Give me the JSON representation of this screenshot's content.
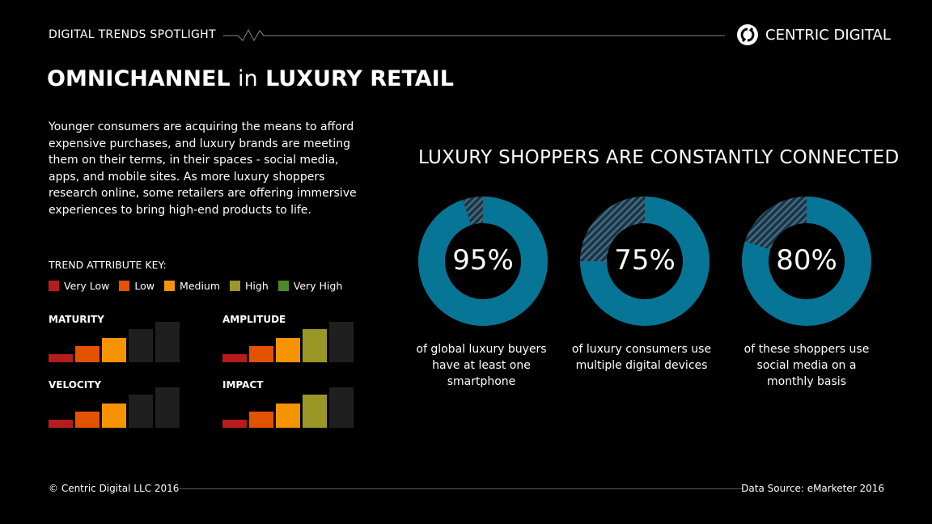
{
  "header": {
    "spotlight": "DIGITAL TRENDS SPOTLIGHT",
    "brand": "CENTRIC DIGITAL",
    "title_bold1": "OMNICHANNEL",
    "title_thin": "in",
    "title_bold2": "LUXURY RETAIL"
  },
  "intro": "Younger consumers are acquiring the means to afford expensive purchases, and luxury brands are meeting them on their terms, in their spaces - social media, apps, and mobile sites. As more luxury shoppers research online, some retailers are offering immersive experiences to bring high-end products to life.",
  "key": {
    "title": "TREND ATTRIBUTE KEY:",
    "levels": [
      {
        "label": "Very Low",
        "color": "#b51d1d"
      },
      {
        "label": "Low",
        "color": "#e35200"
      },
      {
        "label": "Medium",
        "color": "#f59300"
      },
      {
        "label": "High",
        "color": "#9a9726"
      },
      {
        "label": "Very High",
        "color": "#4a8a2a"
      }
    ]
  },
  "attributes": [
    {
      "name": "MATURITY",
      "level": 3
    },
    {
      "name": "AMPLITUDE",
      "level": 4
    },
    {
      "name": "VELOCITY",
      "level": 3
    },
    {
      "name": "IMPACT",
      "level": 4
    }
  ],
  "chart_data": {
    "type": "pie",
    "title": "LUXURY SHOPPERS ARE CONSTANTLY CONNECTED",
    "fill_color": "#077596",
    "items": [
      {
        "value": 95,
        "label": "95%",
        "caption": "of global luxury buyers have at least one smartphone"
      },
      {
        "value": 75,
        "label": "75%",
        "caption": "of luxury consumers use multiple digital devices"
      },
      {
        "value": 80,
        "label": "80%",
        "caption": "of these shoppers use social media on a monthly basis"
      }
    ]
  },
  "footer": {
    "copyright": "© Centric Digital LLC 2016",
    "source": "Data Source: eMarketer 2016"
  }
}
